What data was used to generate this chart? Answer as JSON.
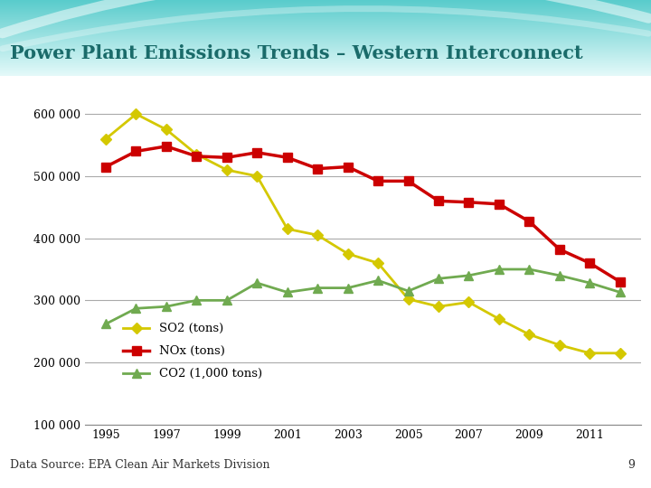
{
  "title": "Power Plant Emissions Trends – Western Interconnect",
  "title_color": "#1A6B6A",
  "footer_text": "Data Source: EPA Clean Air Markets Division",
  "page_number": "9",
  "years": [
    1995,
    1996,
    1997,
    1998,
    1999,
    2000,
    2001,
    2002,
    2003,
    2004,
    2005,
    2006,
    2007,
    2008,
    2009,
    2010,
    2011,
    2012
  ],
  "SO2": [
    560000,
    600000,
    575000,
    535000,
    510000,
    500000,
    415000,
    405000,
    375000,
    360000,
    302000,
    290000,
    297000,
    270000,
    245000,
    228000,
    215000,
    215000
  ],
  "NOx": [
    515000,
    540000,
    548000,
    532000,
    530000,
    538000,
    530000,
    512000,
    515000,
    492000,
    492000,
    460000,
    458000,
    455000,
    427000,
    382000,
    360000,
    330000
  ],
  "CO2": [
    262000,
    287000,
    290000,
    300000,
    300000,
    328000,
    313000,
    320000,
    320000,
    332000,
    315000,
    335000,
    340000,
    350000,
    350000,
    340000,
    328000,
    313000
  ],
  "SO2_color": "#D4C800",
  "NOx_color": "#CC0000",
  "CO2_color": "#70AA50",
  "ylim": [
    100000,
    650000
  ],
  "yticks": [
    100000,
    200000,
    300000,
    400000,
    500000,
    600000
  ],
  "grid_color": "#AAAAAA",
  "plot_bg_color": "#FFFFFF",
  "legend_labels": [
    "SO2 (tons)",
    "NOx (tons)",
    "CO2 (1,000 tons)"
  ],
  "header_color1": "#40C8C8",
  "header_color2": "#A8E8E8",
  "fig_bg_color": "#FFFFFF",
  "xtick_labels": [
    "1995",
    "1997",
    "1999",
    "2001",
    "2003",
    "2005",
    "2007",
    "2009",
    "2011"
  ],
  "xticks": [
    1995,
    1997,
    1999,
    2001,
    2003,
    2005,
    2007,
    2009,
    2011
  ]
}
